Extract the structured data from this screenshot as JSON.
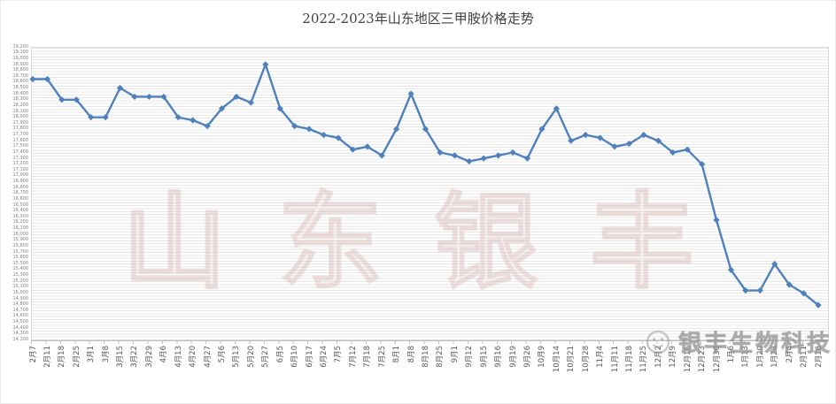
{
  "title": "2022-2023年山东地区三甲胺价格走势",
  "watermark_text": "山东银丰",
  "brand": {
    "name": "银丰生物科技",
    "icon": "smiley-face-logo"
  },
  "colors": {
    "line": "#4f81bd",
    "grid": "#e7e7e7",
    "axis_text": "#595959",
    "title_text": "#404040",
    "watermark": "#d5b0b0"
  },
  "chart_data": {
    "type": "line",
    "title": "2022-2023年山东地区三甲胺价格走势",
    "legend": "none",
    "grid": "dense-horizontal",
    "marker": "diamond",
    "x_axis": {
      "label_rotation": 90
    },
    "y_axis": {
      "min": 14200,
      "max": 19200,
      "step": 100,
      "format": "#,##0"
    },
    "categories": [
      "2月7",
      "2月11",
      "2月18",
      "2月25",
      "3月1",
      "3月8",
      "3月15",
      "3月22",
      "3月29",
      "4月6",
      "4月13",
      "4月20",
      "4月27",
      "5月6",
      "5月13",
      "5月20",
      "5月27",
      "6月5",
      "6月10",
      "6月17",
      "6月24",
      "7月5",
      "7月12",
      "7月18",
      "7月25",
      "8月1",
      "8月8",
      "8月18",
      "8月25",
      "9月1",
      "9月12",
      "9月15",
      "9月16",
      "9月19",
      "9月26",
      "10月9",
      "10月14",
      "10月21",
      "10月28",
      "11月4",
      "11月11",
      "11月18",
      "11月25",
      "12月2",
      "12月9",
      "12月16",
      "12月23",
      "12月30",
      "1月6",
      "1月13",
      "1月20",
      "1月28",
      "2月4",
      "2月11",
      "2月18"
    ],
    "values": [
      18650,
      18650,
      18300,
      18300,
      18000,
      18000,
      18500,
      18350,
      18350,
      18350,
      18000,
      17950,
      17850,
      18150,
      18350,
      18250,
      18900,
      18150,
      17850,
      17800,
      17700,
      17650,
      17450,
      17500,
      17350,
      17800,
      18400,
      17800,
      17400,
      17350,
      17250,
      17300,
      17350,
      17400,
      17300,
      17800,
      18150,
      17600,
      17700,
      17650,
      17500,
      17550,
      17700,
      17600,
      17400,
      17450,
      17200,
      16250,
      15400,
      15050,
      15050,
      15500,
      15150,
      15000,
      14800
    ]
  }
}
